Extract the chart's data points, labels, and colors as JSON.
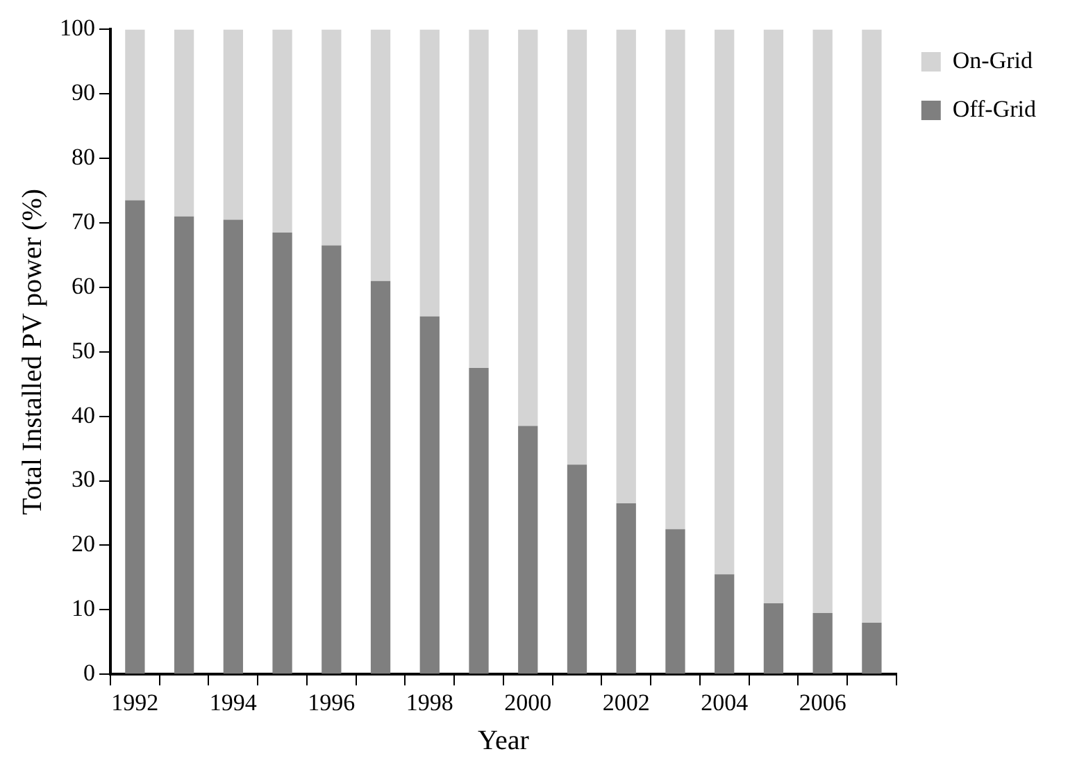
{
  "chart_data": {
    "type": "bar",
    "stacked": true,
    "xlabel": "Year",
    "ylabel": "Total Installed PV power (%)",
    "categories": [
      "1992",
      null,
      "1994",
      null,
      "1996",
      null,
      "1998",
      null,
      "2000",
      null,
      "2002",
      null,
      "2004",
      null,
      "2006",
      null
    ],
    "series": [
      {
        "name": "Off-Grid",
        "color": "#7f7f7f",
        "values": [
          73.5,
          71,
          70.5,
          68.5,
          66.5,
          61,
          55.5,
          47.5,
          38.5,
          32.5,
          26.5,
          22.5,
          15.5,
          11,
          9.5,
          8
        ]
      },
      {
        "name": "On-Grid",
        "color": "#d4d4d4",
        "values": [
          26.5,
          29,
          29.5,
          31.5,
          33.5,
          39,
          44.5,
          52.5,
          61.5,
          67.5,
          73.5,
          77.5,
          84.5,
          89,
          90.5,
          92
        ]
      }
    ],
    "ylim": [
      0,
      100
    ],
    "yticks": [
      0,
      10,
      20,
      30,
      40,
      50,
      60,
      70,
      80,
      90,
      100
    ],
    "grid": false,
    "legend": "top right"
  }
}
